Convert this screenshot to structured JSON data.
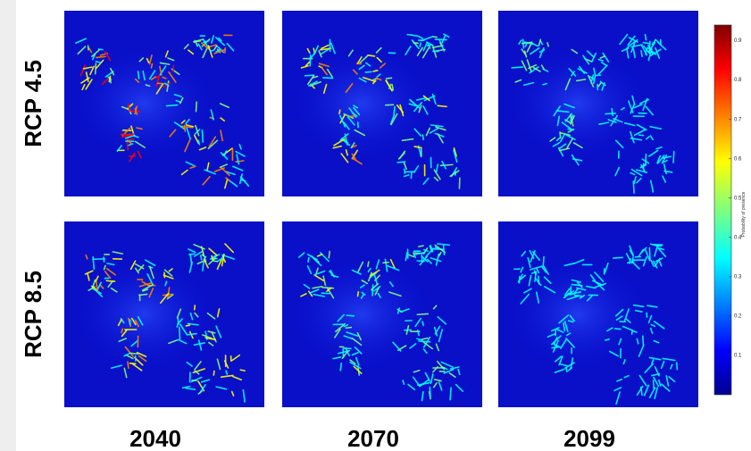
{
  "rows": [
    "RCP 4.5",
    "RCP 8.5"
  ],
  "columns": [
    "2040",
    "2070",
    "2099"
  ],
  "colorbar": {
    "label": "Probability of presence",
    "range": [
      0,
      0.94
    ],
    "ticks": [
      0.1,
      0.2,
      0.3,
      0.4,
      0.5,
      0.6,
      0.7,
      0.8,
      0.9
    ]
  }
}
